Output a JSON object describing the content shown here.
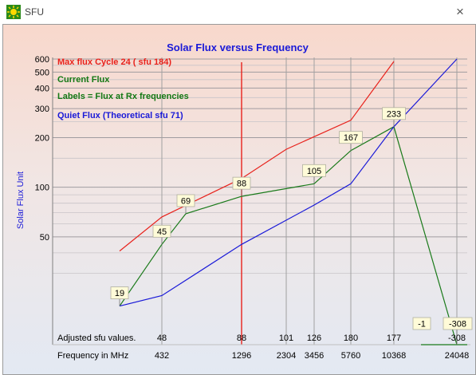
{
  "window": {
    "title": "SFU",
    "close_symbol": "×",
    "icon": "sun-app-icon"
  },
  "chart_data": {
    "type": "line",
    "title": "Solar Flux versus Frequency",
    "ylabel": "Solar Flux Unit",
    "xlabel": "Frequency in MHz",
    "y_scale": "log",
    "y_ticks": [
      600,
      500,
      400,
      300,
      200,
      100,
      50
    ],
    "frequencies_mhz": [
      432,
      1296,
      2304,
      3456,
      5760,
      10368,
      24048
    ],
    "adjusted_label": "Adjusted  sfu  values.",
    "adjusted_values": [
      "48",
      "88",
      "101",
      "126",
      "180",
      "177",
      "-308"
    ],
    "legend": [
      {
        "text": "Max flux Cycle 24 ( sfu 184)",
        "color": "#e8221c"
      },
      {
        "text": "Current Flux",
        "color": "#147814"
      },
      {
        "text": "Labels = Flux at Rx frequencies",
        "color": "#147814"
      },
      {
        "text": "Quiet Flux (Theoretical  sfu 71)",
        "color": "#1a1ad8"
      }
    ],
    "series": [
      {
        "name": "Max flux Cycle 24 ( sfu 184)",
        "color": "#e8221c",
        "points": [
          [
            230,
            41
          ],
          [
            432,
            66
          ],
          [
            1296,
            113
          ],
          [
            2304,
            170
          ],
          [
            5760,
            255
          ],
          [
            10368,
            580
          ]
        ]
      },
      {
        "name": "Current Flux",
        "color": "#1a7a1a",
        "points": [
          [
            230,
            19
          ],
          [
            432,
            45
          ],
          [
            780,
            69
          ],
          [
            1296,
            88
          ],
          [
            3456,
            105
          ],
          [
            5760,
            167
          ],
          [
            10368,
            233
          ],
          [
            24048,
            -1
          ]
        ]
      },
      {
        "name": "Quiet Flux (Theoretical  sfu 71)",
        "color": "#1a1ad8",
        "points": [
          [
            230,
            19
          ],
          [
            432,
            22
          ],
          [
            1296,
            45
          ],
          [
            3456,
            78
          ],
          [
            5760,
            105
          ],
          [
            10368,
            233
          ],
          [
            24048,
            600
          ]
        ]
      }
    ],
    "point_labels": [
      {
        "text": "19",
        "x": 230,
        "y": 19
      },
      {
        "text": "45",
        "x": 432,
        "y": 45
      },
      {
        "text": "69",
        "x": 780,
        "y": 69
      },
      {
        "text": "88",
        "x": 1296,
        "y": 88
      },
      {
        "text": "105",
        "x": 3456,
        "y": 105
      },
      {
        "text": "167",
        "x": 5760,
        "y": 167
      },
      {
        "text": "233",
        "x": 10368,
        "y": 233
      },
      {
        "text": "-1",
        "x": 24048,
        "y": -1
      },
      {
        "text": "-308",
        "x": 24048,
        "y": -308
      }
    ],
    "marker_frequency_mhz": 1296,
    "colors": {
      "title": "#1a1ad8",
      "ylabel": "#1a1ad8",
      "marker": "#e8221c"
    }
  }
}
